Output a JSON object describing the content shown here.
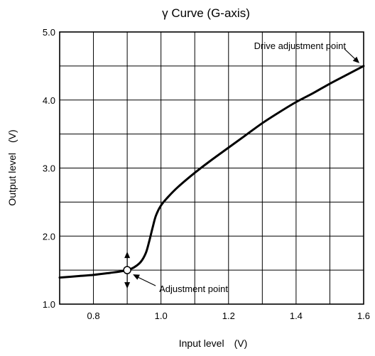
{
  "chart_data": {
    "type": "line",
    "title": "γ Curve (G-axis)",
    "xlabel": "Input level　(V)",
    "ylabel": "Output level　(V)",
    "xlim": [
      0.7,
      1.6
    ],
    "ylim": [
      1.0,
      5.0
    ],
    "grid": true,
    "x_tick_labels": [
      "0.8",
      "1.0",
      "1.2",
      "1.4",
      "1.6"
    ],
    "y_tick_labels": [
      "1.0",
      "2.0",
      "3.0",
      "4.0",
      "5.0"
    ],
    "series": [
      {
        "x": [
          0.7,
          0.75,
          0.8,
          0.85,
          0.88,
          0.9,
          0.92,
          0.94,
          0.955,
          0.965,
          0.975,
          0.985,
          1.0,
          1.02,
          1.05,
          1.1,
          1.15,
          1.2,
          1.25,
          1.3,
          1.35,
          1.4,
          1.45,
          1.5,
          1.55,
          1.6
        ],
        "y": [
          1.39,
          1.41,
          1.43,
          1.46,
          1.48,
          1.5,
          1.54,
          1.62,
          1.75,
          1.92,
          2.12,
          2.3,
          2.45,
          2.57,
          2.72,
          2.93,
          3.12,
          3.3,
          3.48,
          3.66,
          3.82,
          3.97,
          4.1,
          4.24,
          4.37,
          4.5
        ]
      }
    ],
    "annotations": [
      {
        "text": "Drive adjustment point",
        "x": 1.6,
        "y": 4.5
      },
      {
        "text": "Adjustment point",
        "x": 0.9,
        "y": 1.5
      }
    ]
  }
}
